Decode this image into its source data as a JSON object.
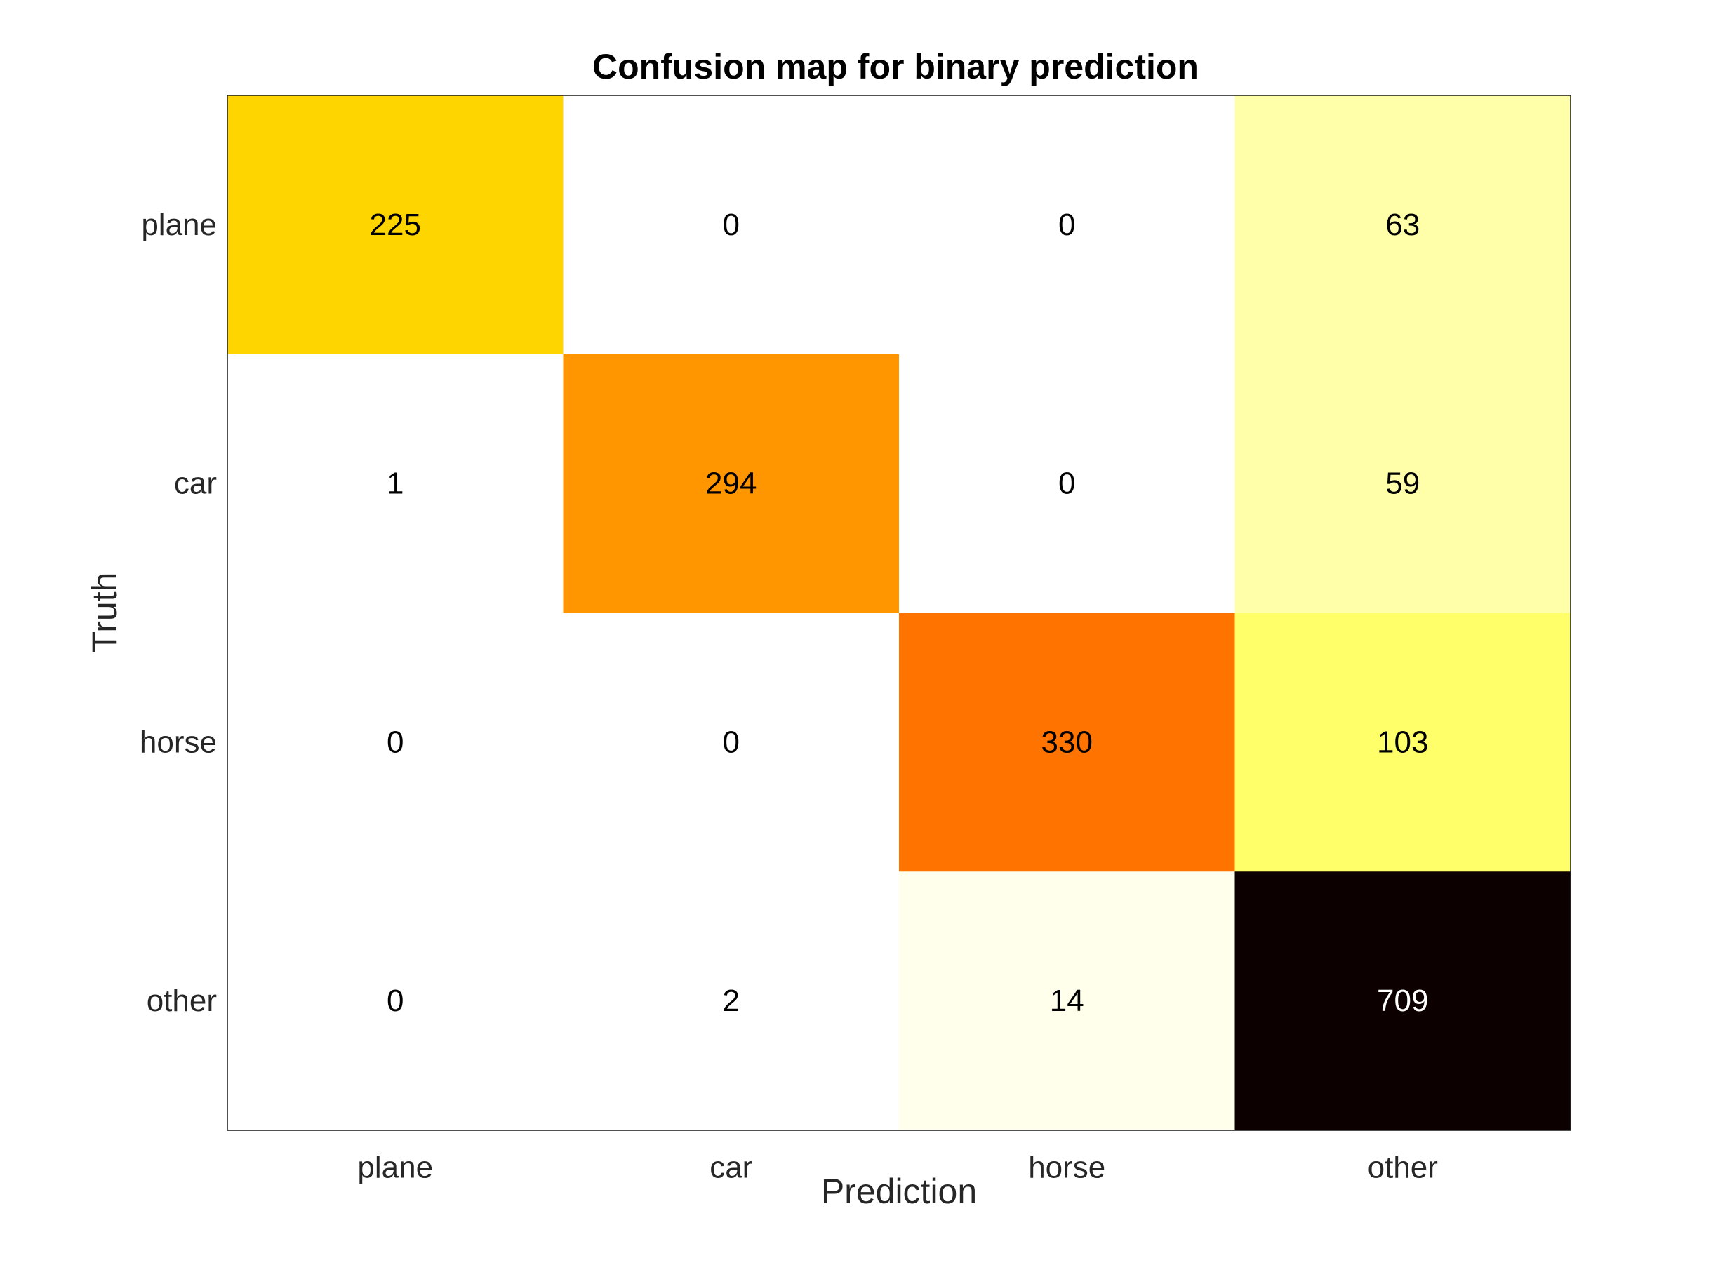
{
  "chart_data": {
    "type": "heatmap",
    "title": "Confusion map for binary prediction",
    "xlabel": "Prediction",
    "ylabel": "Truth",
    "x_categories": [
      "plane",
      "car",
      "horse",
      "other"
    ],
    "y_categories": [
      "plane",
      "car",
      "horse",
      "other"
    ],
    "values": [
      [
        225,
        0,
        0,
        63
      ],
      [
        1,
        294,
        0,
        59
      ],
      [
        0,
        0,
        330,
        103
      ],
      [
        0,
        2,
        14,
        709
      ]
    ],
    "cell_colors": [
      [
        "#FFD500",
        "#FFFFFF",
        "#FFFFFF",
        "#FFFFAA"
      ],
      [
        "#FFFFFF",
        "#FF9600",
        "#FFFFFF",
        "#FFFFAA"
      ],
      [
        "#FFFFFF",
        "#FFFFFF",
        "#FF7300",
        "#FFFF6A"
      ],
      [
        "#FFFFFF",
        "#FFFFFF",
        "#FFFFEB",
        "#0D0000"
      ]
    ],
    "colormap": "hot (reversed)",
    "grid": false,
    "legend": "none"
  }
}
